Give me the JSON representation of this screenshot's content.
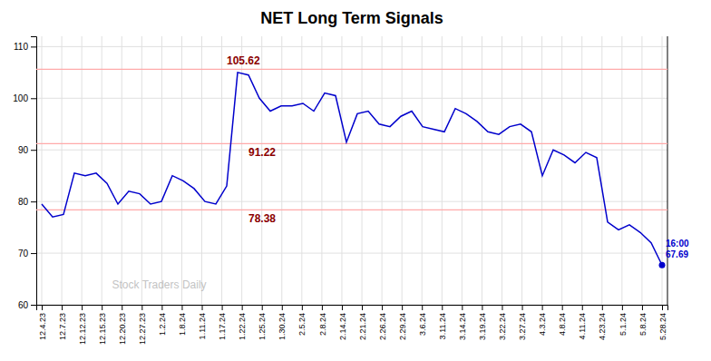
{
  "chart_data": {
    "type": "line",
    "title": "NET Long Term Signals",
    "color": "#0000cc",
    "grid": true,
    "x": [
      0,
      1,
      2,
      3,
      4,
      5,
      6,
      7,
      8,
      9,
      10,
      11,
      12,
      13,
      14,
      15,
      16,
      17,
      18,
      19,
      20,
      21,
      22,
      23,
      24,
      25,
      26,
      27,
      28,
      29,
      30,
      31,
      32,
      33,
      34,
      35,
      36,
      37,
      38,
      39,
      40,
      41,
      42,
      43,
      44,
      45,
      46,
      47,
      48,
      49,
      50,
      51,
      52,
      53,
      54,
      55,
      56,
      57
    ],
    "values": [
      79.5,
      77.0,
      77.5,
      85.5,
      85.0,
      85.5,
      83.5,
      79.5,
      82.0,
      81.5,
      79.5,
      80.0,
      85.0,
      84.0,
      82.5,
      80.0,
      79.5,
      83.0,
      105.0,
      104.5,
      100.0,
      97.5,
      98.5,
      98.5,
      99.0,
      97.5,
      101.0,
      100.5,
      91.5,
      97.0,
      97.5,
      95.0,
      94.5,
      96.5,
      97.5,
      94.5,
      94.0,
      93.5,
      98.0,
      97.0,
      95.5,
      93.5,
      93.0,
      94.5,
      95.0,
      93.5,
      85.0,
      90.0,
      89.0,
      87.5,
      89.5,
      88.5,
      76.0,
      74.5,
      75.5,
      74.0,
      72.0,
      67.69
    ],
    "xlim": [
      -0.5,
      57.5
    ],
    "xticks": [
      {
        "value": 0,
        "label": "12.4.23"
      },
      {
        "value": 1.83871,
        "label": "12.7.23"
      },
      {
        "value": 3.677419,
        "label": "12.12.23"
      },
      {
        "value": 5.516129,
        "label": "12.15.23"
      },
      {
        "value": 7.354839,
        "label": "12.20.23"
      },
      {
        "value": 9.193548,
        "label": "12.27.23"
      },
      {
        "value": 11.032258,
        "label": "1.2.24"
      },
      {
        "value": 12.870968,
        "label": "1.8.24"
      },
      {
        "value": 14.709677,
        "label": "1.11.24"
      },
      {
        "value": 16.548387,
        "label": "1.17.24"
      },
      {
        "value": 18.387097,
        "label": "1.22.24"
      },
      {
        "value": 20.225806,
        "label": "1.25.24"
      },
      {
        "value": 22.064516,
        "label": "1.30.24"
      },
      {
        "value": 23.903226,
        "label": "2.5.24"
      },
      {
        "value": 25.741935,
        "label": "2.8.24"
      },
      {
        "value": 27.580645,
        "label": "2.14.24"
      },
      {
        "value": 29.419355,
        "label": "2.21.24"
      },
      {
        "value": 31.258065,
        "label": "2.26.24"
      },
      {
        "value": 33.096774,
        "label": "2.29.24"
      },
      {
        "value": 34.935484,
        "label": "3.6.24"
      },
      {
        "value": 36.774194,
        "label": "3.11.24"
      },
      {
        "value": 38.612903,
        "label": "3.14.24"
      },
      {
        "value": 40.451613,
        "label": "3.19.24"
      },
      {
        "value": 42.290323,
        "label": "3.22.24"
      },
      {
        "value": 44.129032,
        "label": "3.27.24"
      },
      {
        "value": 45.967742,
        "label": "4.3.24"
      },
      {
        "value": 47.806452,
        "label": "4.8.24"
      },
      {
        "value": 49.645161,
        "label": "4.11.24"
      },
      {
        "value": 51.483871,
        "label": "4.23.24"
      },
      {
        "value": 53.322581,
        "label": "5.1.24"
      },
      {
        "value": 55.16129,
        "label": "5.8.24"
      },
      {
        "value": 57,
        "label": "5.28.24"
      }
    ],
    "ylim": [
      60,
      112
    ],
    "yticks": [
      60,
      70,
      80,
      90,
      100,
      110
    ],
    "reference_lines": [
      {
        "value": 105.62,
        "label": "105.62"
      },
      {
        "value": 91.22,
        "label": "91.22"
      },
      {
        "value": 78.38,
        "label": "78.38"
      }
    ],
    "reference_line_color": "#ffaaaa",
    "annotation_color": "#8b0000",
    "end_labels": [
      "16:00",
      "67.69"
    ],
    "watermark": "Stock Traders Daily",
    "watermark_color": "#aaaaaa"
  }
}
